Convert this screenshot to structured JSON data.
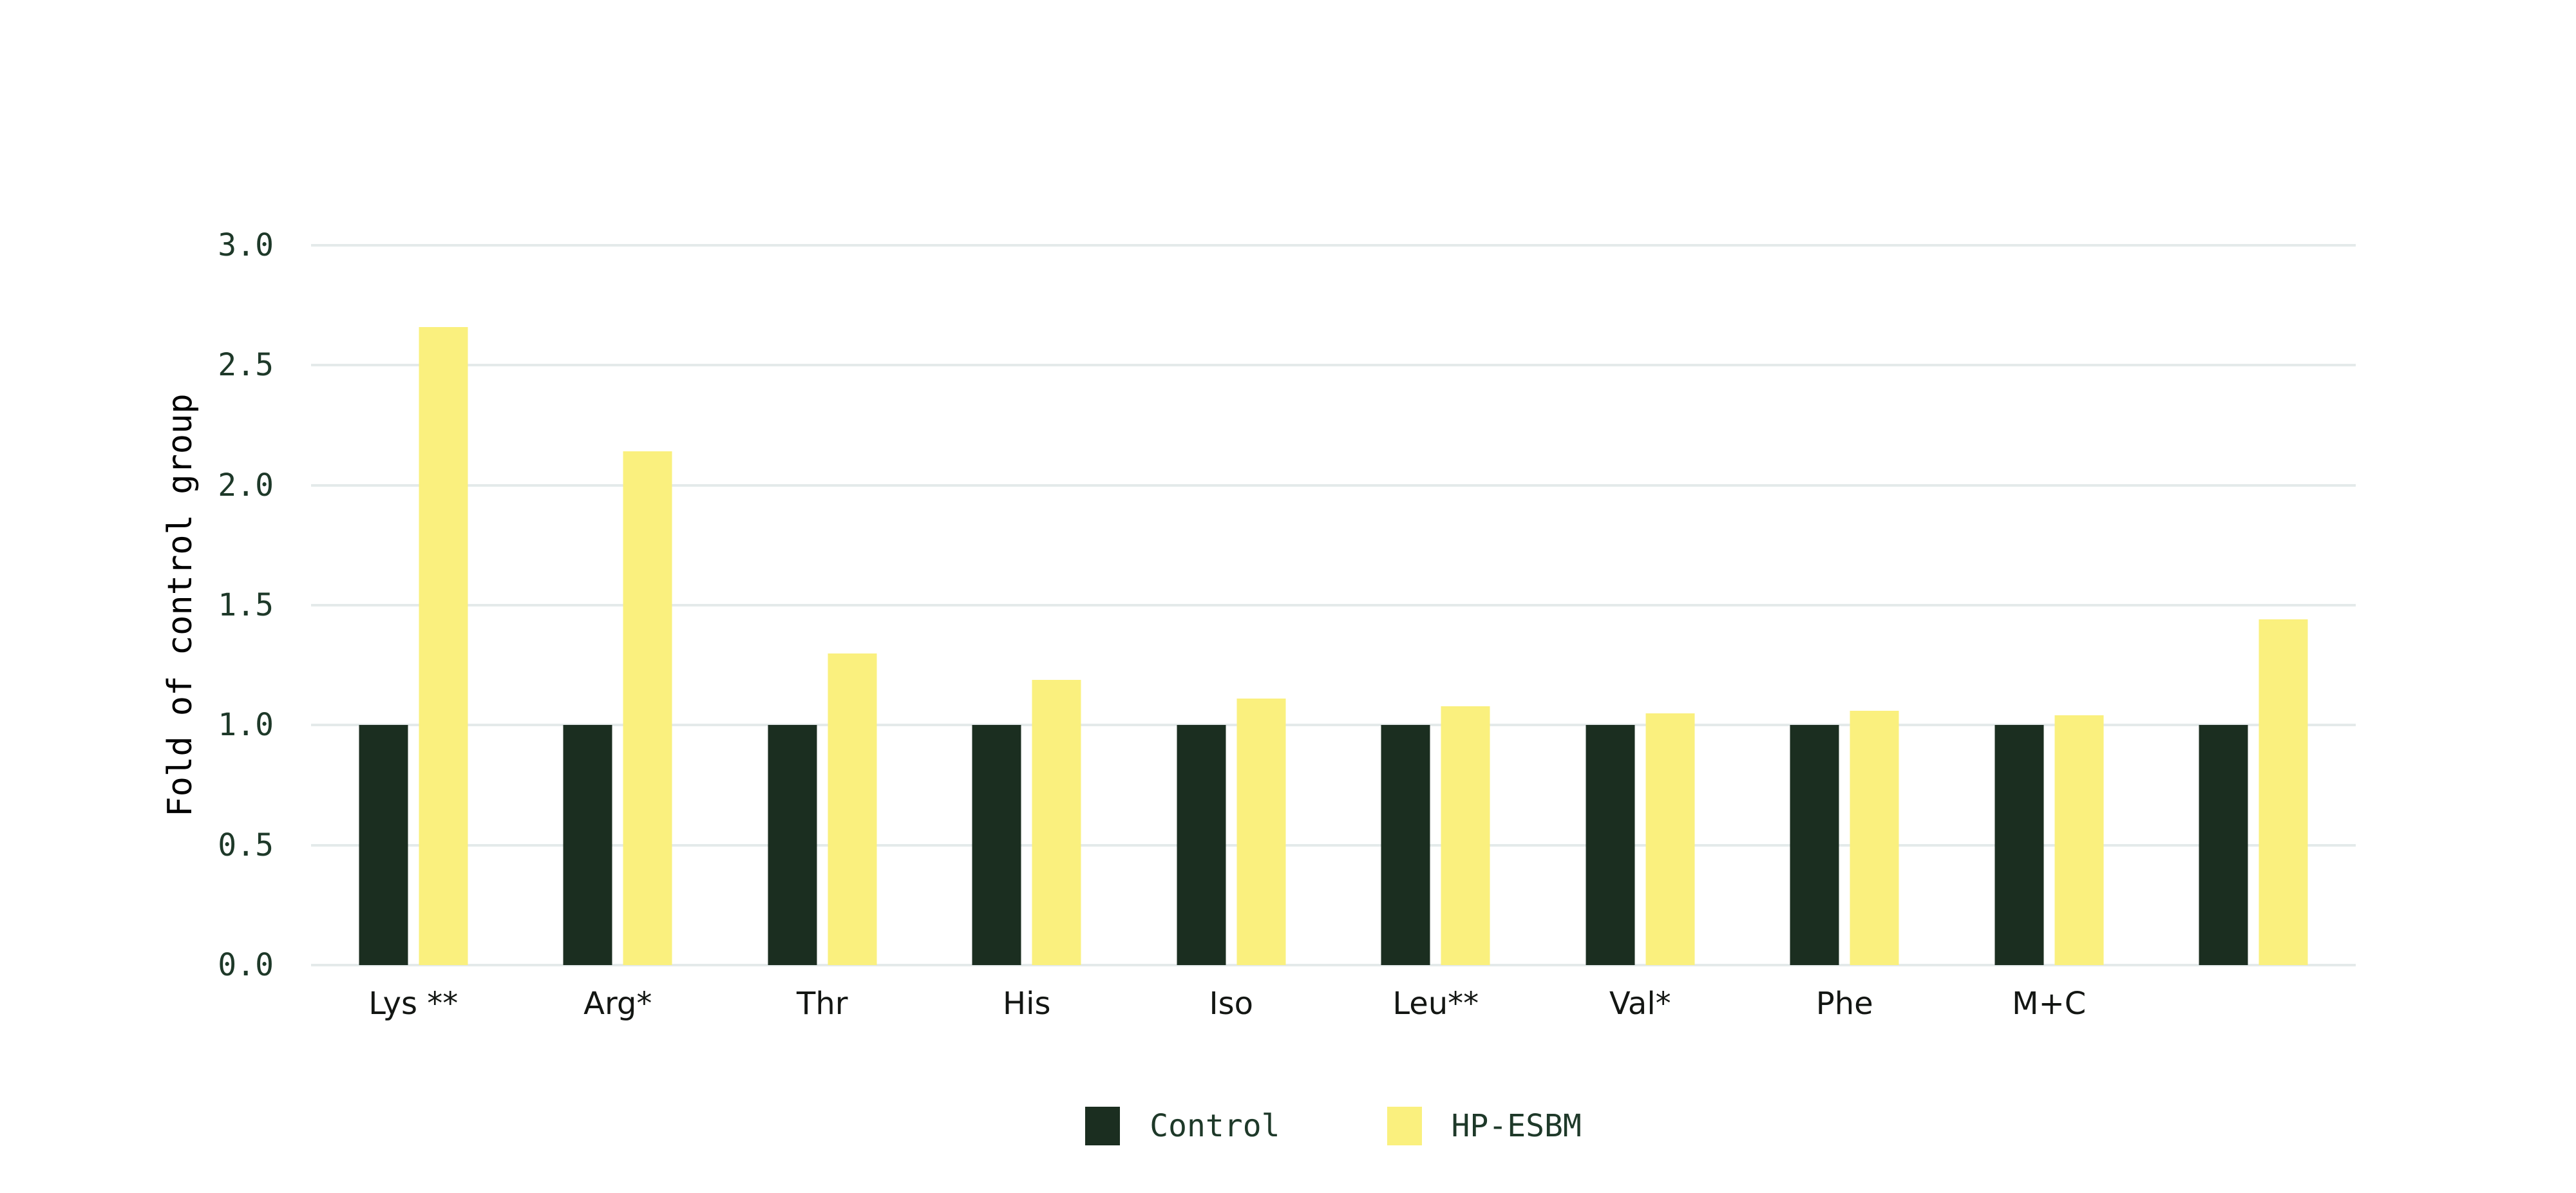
{
  "chart_data": {
    "type": "bar",
    "title": "",
    "xlabel": "",
    "ylabel": "Fold of control group",
    "ylim": [
      0.0,
      3.0
    ],
    "ytick_labels": [
      "0.0",
      "0.5",
      "1.0",
      "1.5",
      "2.0",
      "2.5",
      "3.0"
    ],
    "grid": true,
    "legend_position": "bottom-center",
    "categories": [
      "Lys **",
      "Arg*",
      "Thr",
      "His",
      "Iso",
      "Leu**",
      "Val*",
      "Phe",
      "M+C",
      ""
    ],
    "series": [
      {
        "name": "Control",
        "color": "#1B2E20",
        "values": [
          1.0,
          1.0,
          1.0,
          1.0,
          1.0,
          1.0,
          1.0,
          1.0,
          1.0,
          1.0
        ]
      },
      {
        "name": "HP-ESBM",
        "color": "#FAF07E",
        "values": [
          2.66,
          2.14,
          1.3,
          1.19,
          1.11,
          1.08,
          1.05,
          1.06,
          1.04,
          1.44
        ]
      }
    ]
  },
  "colors": {
    "background": "#FFFFFF",
    "gridline": "#E4EAEA",
    "axis_text": "#1E3929",
    "category_text": "#131613"
  }
}
